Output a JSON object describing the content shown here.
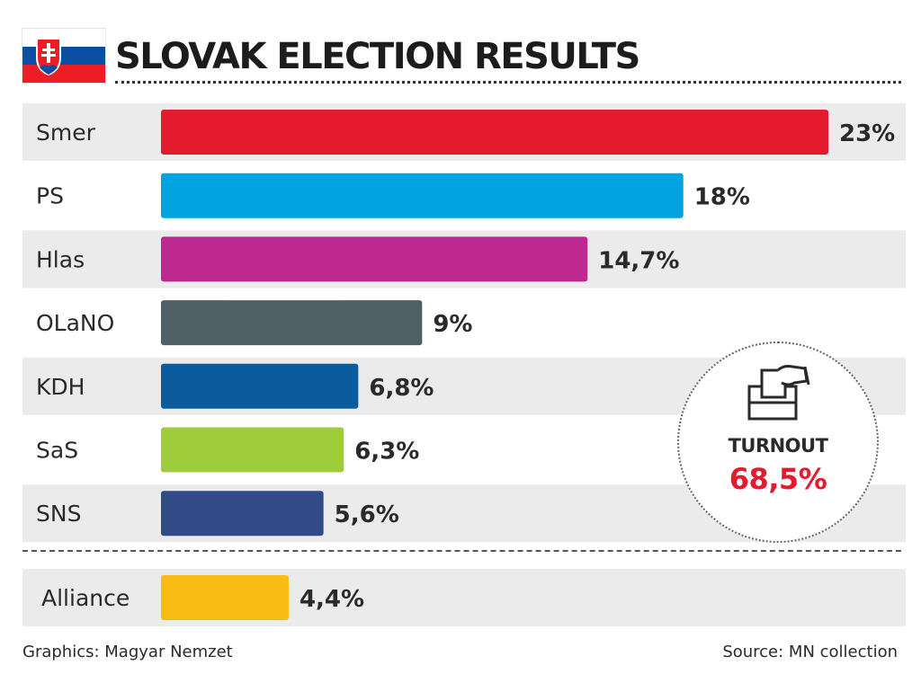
{
  "title": "SLOVAK ELECTION RESULTS",
  "flag": {
    "colors": [
      "#ffffff",
      "#0b4ea2",
      "#ee1c25"
    ]
  },
  "chart_data": {
    "type": "bar",
    "orientation": "horizontal",
    "title": "SLOVAK ELECTION RESULTS",
    "unit": "%",
    "xlim": [
      0,
      23
    ],
    "categories": [
      "Smer",
      "PS",
      "Hlas",
      "OLaNO",
      "KDH",
      "SaS",
      "SNS"
    ],
    "values": [
      23,
      18,
      14.7,
      9,
      6.8,
      6.3,
      5.6
    ],
    "value_labels": [
      "23%",
      "18%",
      "14,7%",
      "9%",
      "6,8%",
      "6,3%",
      "5,6%"
    ],
    "colors": [
      "#e41b2e",
      "#00a3df",
      "#be2991",
      "#515f67",
      "#0a5c9c",
      "#9ecc3a",
      "#304b87"
    ],
    "below_threshold": {
      "category": "Alliance",
      "value": 4.4,
      "value_label": "4,4%",
      "color": "#f8bc14"
    }
  },
  "turnout": {
    "label": "TURNOUT",
    "value": "68,5%",
    "icon": "ballot-box-icon"
  },
  "footer": {
    "credit": "Graphics: Magyar Nemzet",
    "source": "Source: MN collection"
  },
  "colors": {
    "row_alt": "#ebebeb",
    "accent_red": "#e41b2e"
  }
}
